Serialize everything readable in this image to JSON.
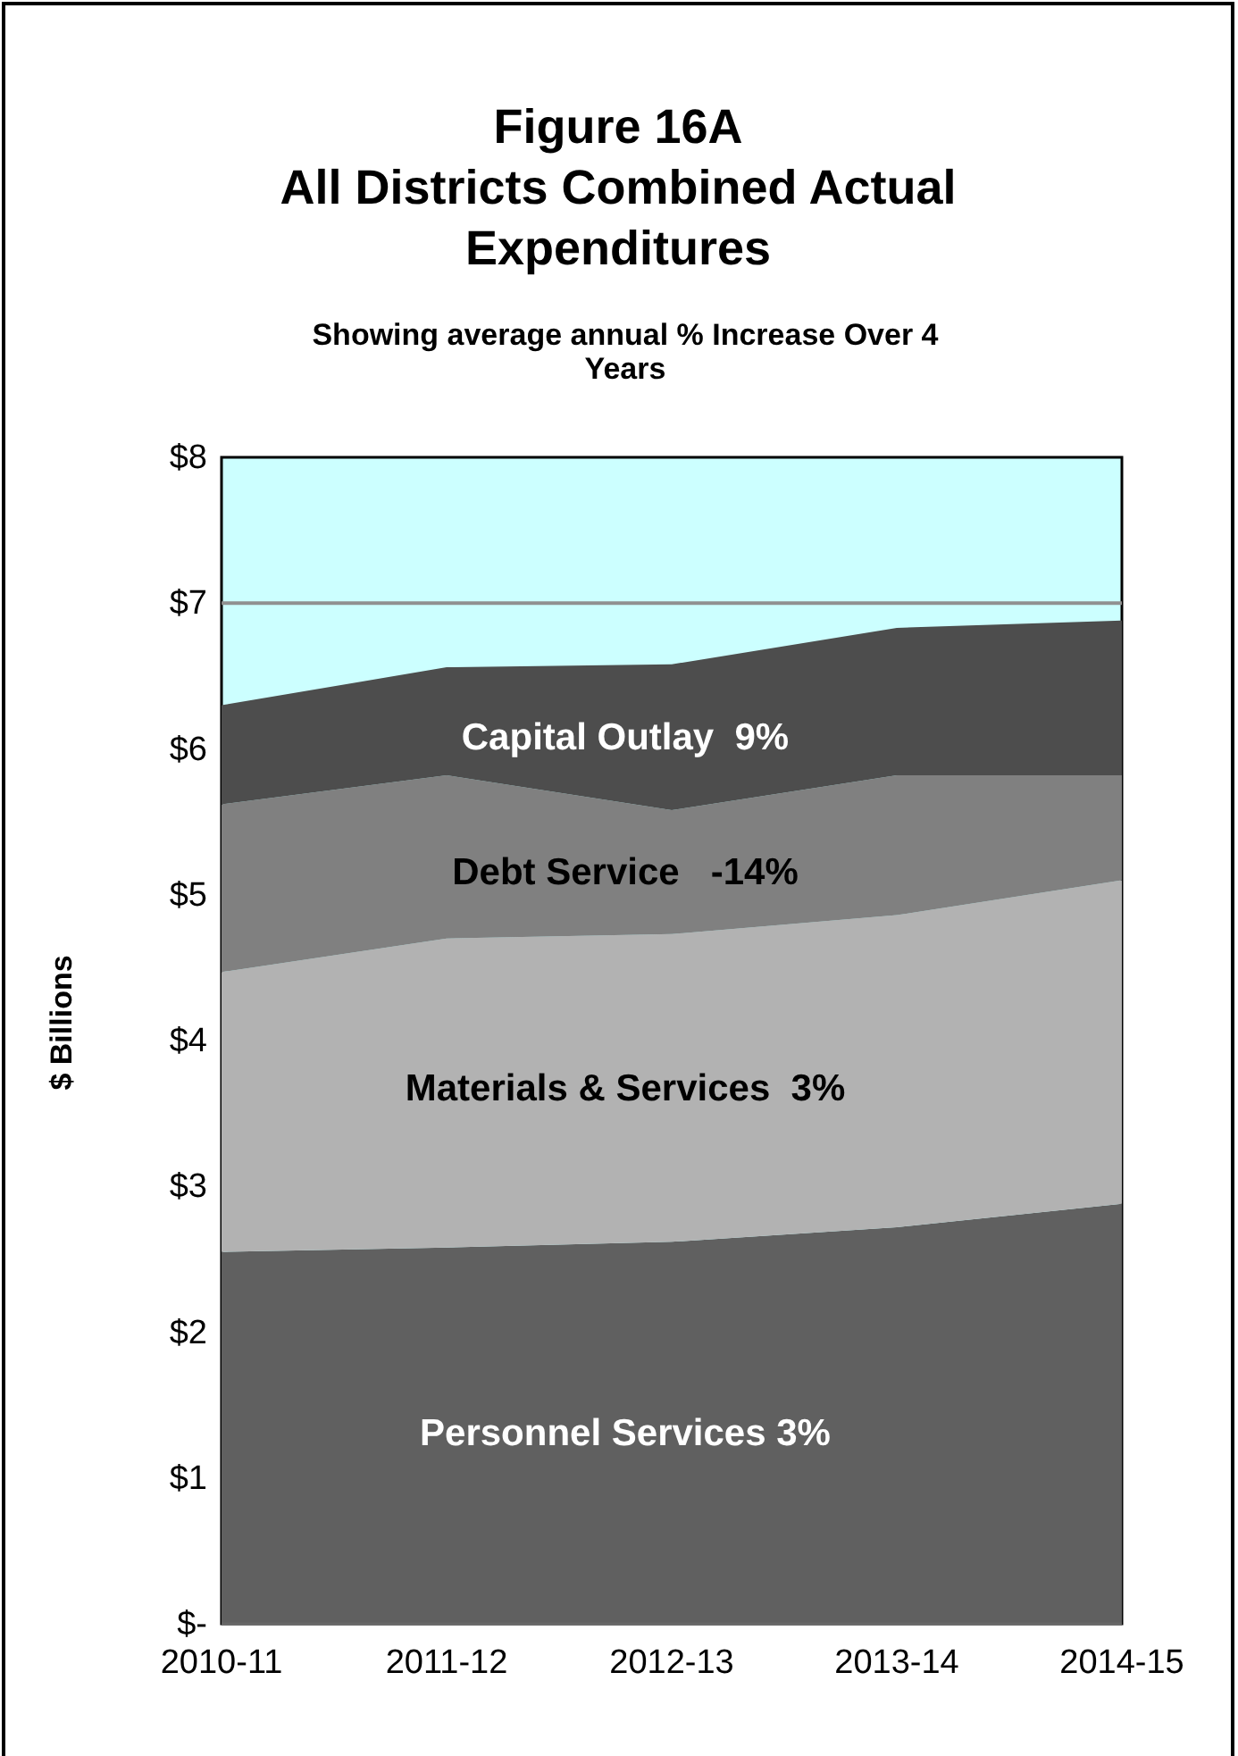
{
  "chart_data": {
    "type": "area",
    "stacked": true,
    "title": "Figure 16A\nAll Districts Combined Actual Expenditures",
    "subtitle": "Showing average annual % Increase Over 4 Years",
    "ylabel": "$ Billions",
    "categories": [
      "2010-11",
      "2011-12",
      "2012-13",
      "2013-14",
      "2014-15"
    ],
    "series": [
      {
        "name": "Personnel Services 3%",
        "color": "#606060",
        "values": [
          2.55,
          2.58,
          2.62,
          2.72,
          2.88
        ]
      },
      {
        "name": "Materials & Services  3%",
        "color": "#b2b2b2",
        "values": [
          1.92,
          2.12,
          2.11,
          2.14,
          2.22
        ]
      },
      {
        "name": "Debt Service   -14%",
        "color": "#808080",
        "values": [
          1.15,
          1.12,
          0.85,
          0.96,
          0.72
        ]
      },
      {
        "name": "Capital Outlay  9%",
        "color": "#4d4d4d",
        "values": [
          0.68,
          0.74,
          1.0,
          1.01,
          1.06
        ]
      }
    ],
    "ylim": [
      0,
      8
    ],
    "yticks": [
      {
        "value": 0,
        "label": "$-"
      },
      {
        "value": 1,
        "label": "$1"
      },
      {
        "value": 2,
        "label": "$2"
      },
      {
        "value": 3,
        "label": "$3"
      },
      {
        "value": 4,
        "label": "$4"
      },
      {
        "value": 5,
        "label": "$5"
      },
      {
        "value": 6,
        "label": "$6"
      },
      {
        "value": 7,
        "label": "$7"
      },
      {
        "value": 8,
        "label": "$8"
      }
    ],
    "ref_lines": [
      {
        "axis": "y",
        "value": 7,
        "color": "#909090"
      }
    ]
  }
}
